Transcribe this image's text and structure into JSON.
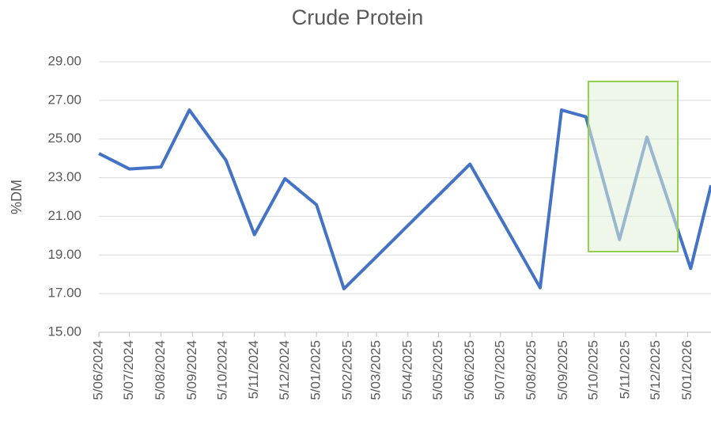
{
  "chart_data": {
    "type": "line",
    "title": "Crude Protein",
    "y_label": "%DM",
    "x": [
      "2024-06-05",
      "2024-07-05",
      "2024-08-05",
      "2024-09-02",
      "2024-10-08",
      "2024-11-05",
      "2024-12-05",
      "2025-01-05",
      "2025-02-01",
      "2025-06-05",
      "2025-08-13",
      "2025-09-03",
      "2025-09-27",
      "2025-10-30",
      "2025-11-26",
      "2026-01-08",
      "2026-01-28"
    ],
    "series": [
      {
        "name": "Crude Protein",
        "color": "#4472c4",
        "values": [
          24.25,
          23.45,
          23.55,
          26.5,
          23.9,
          20.05,
          22.95,
          21.6,
          17.25,
          23.7,
          17.3,
          26.5,
          26.15,
          19.8,
          25.1,
          18.3,
          22.6
        ]
      }
    ],
    "xlim": [
      "2024-06-05",
      "2026-01-28"
    ],
    "xticks": [
      {
        "value": "2024-06-05",
        "label": "5/06/2024"
      },
      {
        "value": "2024-07-05",
        "label": "5/07/2024"
      },
      {
        "value": "2024-08-05",
        "label": "5/08/2024"
      },
      {
        "value": "2024-09-05",
        "label": "5/09/2024"
      },
      {
        "value": "2024-10-05",
        "label": "5/10/2024"
      },
      {
        "value": "2024-11-05",
        "label": "5/11/2024"
      },
      {
        "value": "2024-12-05",
        "label": "5/12/2024"
      },
      {
        "value": "2025-01-05",
        "label": "5/01/2025"
      },
      {
        "value": "2025-02-05",
        "label": "5/02/2025"
      },
      {
        "value": "2025-03-05",
        "label": "5/03/2025"
      },
      {
        "value": "2025-04-05",
        "label": "5/04/2025"
      },
      {
        "value": "2025-05-05",
        "label": "5/05/2025"
      },
      {
        "value": "2025-06-05",
        "label": "5/06/2025"
      },
      {
        "value": "2025-07-05",
        "label": "5/07/2025"
      },
      {
        "value": "2025-08-05",
        "label": "5/08/2025"
      },
      {
        "value": "2025-09-05",
        "label": "5/09/2025"
      },
      {
        "value": "2025-10-05",
        "label": "5/10/2025"
      },
      {
        "value": "2025-11-05",
        "label": "5/11/2025"
      },
      {
        "value": "2025-12-05",
        "label": "5/12/2025"
      },
      {
        "value": "2026-01-05",
        "label": "5/01/2026"
      }
    ],
    "ylim": [
      15,
      29
    ],
    "yticks": [
      {
        "value": 15,
        "label": "15.00"
      },
      {
        "value": 17,
        "label": "17.00"
      },
      {
        "value": 19,
        "label": "19.00"
      },
      {
        "value": 21,
        "label": "21.00"
      },
      {
        "value": 23,
        "label": "23.00"
      },
      {
        "value": 25,
        "label": "25.00"
      },
      {
        "value": 27,
        "label": "27.00"
      },
      {
        "value": 29,
        "label": "29.00"
      }
    ],
    "grid": true
  }
}
